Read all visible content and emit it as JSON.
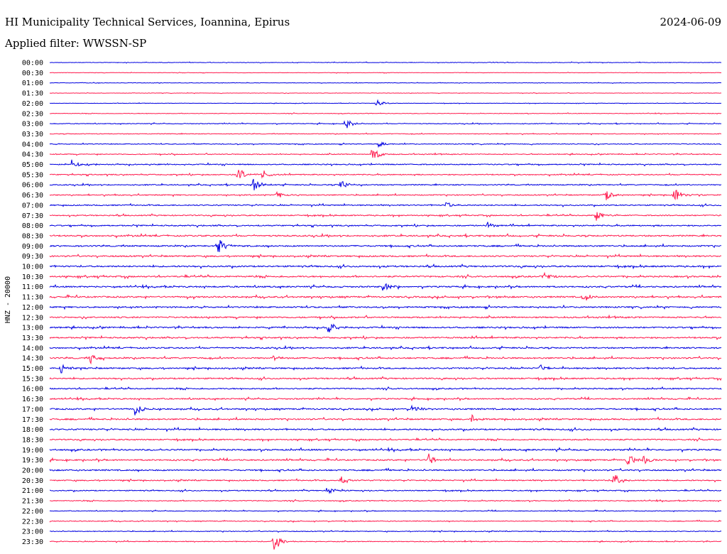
{
  "header": {
    "title": "HI Municipality Technical Services, Ioannina, Epirus",
    "date": "2024-06-09",
    "filter_label": "Applied filter: WWSSN-SP"
  },
  "colors": {
    "trace_even": "#0000e0",
    "trace_odd": "#ff1a4d",
    "background": "#ffffff",
    "text": "#000000"
  },
  "chart_data": {
    "type": "line",
    "subtype": "helicorder",
    "ylabel": "HNZ - 20000",
    "row_labels": [
      "00:00",
      "00:30",
      "01:00",
      "01:30",
      "02:00",
      "02:30",
      "03:00",
      "03:30",
      "04:00",
      "04:30",
      "05:00",
      "05:30",
      "06:00",
      "06:30",
      "07:00",
      "07:30",
      "08:00",
      "08:30",
      "09:00",
      "09:30",
      "10:00",
      "10:30",
      "11:00",
      "11:30",
      "12:00",
      "12:30",
      "13:00",
      "13:30",
      "14:00",
      "14:30",
      "15:00",
      "15:30",
      "16:00",
      "16:30",
      "17:00",
      "17:30",
      "18:00",
      "18:30",
      "19:00",
      "19:30",
      "20:00",
      "20:30",
      "21:00",
      "21:30",
      "22:00",
      "22:30",
      "23:00",
      "23:30"
    ],
    "row_duration_minutes": 30,
    "x_range_minutes": [
      0,
      30
    ],
    "grid": false,
    "series_colors_alternate": [
      "#0000e0",
      "#ff1a4d"
    ],
    "noise_level": [
      0.15,
      0.12,
      0.12,
      0.12,
      0.12,
      0.15,
      0.2,
      0.2,
      0.22,
      0.25,
      0.3,
      0.3,
      0.3,
      0.3,
      0.32,
      0.32,
      0.35,
      0.4,
      0.4,
      0.4,
      0.42,
      0.42,
      0.4,
      0.42,
      0.4,
      0.4,
      0.4,
      0.4,
      0.38,
      0.4,
      0.4,
      0.38,
      0.35,
      0.35,
      0.4,
      0.4,
      0.4,
      0.35,
      0.42,
      0.38,
      0.38,
      0.32,
      0.28,
      0.25,
      0.2,
      0.22,
      0.22,
      0.22
    ],
    "events": [
      {
        "row": 4,
        "t": 14.6,
        "amp": 5
      },
      {
        "row": 6,
        "t": 13.2,
        "amp": 9
      },
      {
        "row": 8,
        "t": 14.7,
        "amp": 5
      },
      {
        "row": 9,
        "t": 14.4,
        "amp": 11
      },
      {
        "row": 10,
        "t": 1.0,
        "amp": 8
      },
      {
        "row": 11,
        "t": 8.4,
        "amp": 12
      },
      {
        "row": 11,
        "t": 9.5,
        "amp": 6
      },
      {
        "row": 12,
        "t": 9.1,
        "amp": 11
      },
      {
        "row": 12,
        "t": 13.0,
        "amp": 8
      },
      {
        "row": 13,
        "t": 10.1,
        "amp": 6
      },
      {
        "row": 13,
        "t": 24.8,
        "amp": 10
      },
      {
        "row": 13,
        "t": 27.9,
        "amp": 11
      },
      {
        "row": 14,
        "t": 17.7,
        "amp": 5
      },
      {
        "row": 15,
        "t": 24.4,
        "amp": 8
      },
      {
        "row": 16,
        "t": 19.5,
        "amp": 7
      },
      {
        "row": 18,
        "t": 7.5,
        "amp": 13
      },
      {
        "row": 21,
        "t": 22.1,
        "amp": 6
      },
      {
        "row": 22,
        "t": 14.9,
        "amp": 9
      },
      {
        "row": 23,
        "t": 23.8,
        "amp": 9
      },
      {
        "row": 26,
        "t": 12.4,
        "amp": 11
      },
      {
        "row": 29,
        "t": 1.8,
        "amp": 8
      },
      {
        "row": 29,
        "t": 10.0,
        "amp": 5
      },
      {
        "row": 30,
        "t": 0.5,
        "amp": 8
      },
      {
        "row": 30,
        "t": 21.9,
        "amp": 6
      },
      {
        "row": 34,
        "t": 3.8,
        "amp": 10
      },
      {
        "row": 34,
        "t": 16.2,
        "amp": 7
      },
      {
        "row": 35,
        "t": 18.8,
        "amp": 7
      },
      {
        "row": 39,
        "t": 16.9,
        "amp": 10
      },
      {
        "row": 39,
        "t": 25.8,
        "amp": 11
      },
      {
        "row": 39,
        "t": 26.5,
        "amp": 8
      },
      {
        "row": 41,
        "t": 13.0,
        "amp": 8
      },
      {
        "row": 41,
        "t": 25.2,
        "amp": 11
      },
      {
        "row": 42,
        "t": 12.4,
        "amp": 6
      },
      {
        "row": 47,
        "t": 10.0,
        "amp": 16
      }
    ]
  }
}
